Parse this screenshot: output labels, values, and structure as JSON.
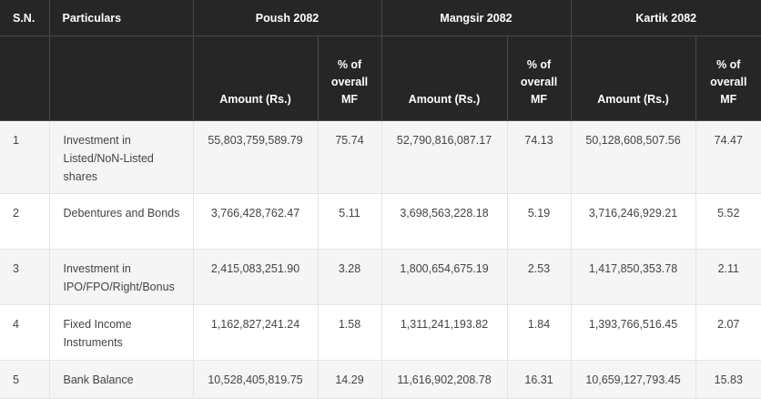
{
  "table": {
    "header_row1": {
      "sn": "S.N.",
      "particulars": "Particulars",
      "periods": [
        "Poush 2082",
        "Mangsir 2082",
        "Kartik 2082"
      ]
    },
    "header_row2": {
      "amount": "Amount (Rs.)",
      "percent": "% of overall MF"
    },
    "rows": [
      {
        "sn": "1",
        "particulars": "Investment in Listed/NoN-Listed shares",
        "poush_amount": "55,803,759,589.79",
        "poush_pct": "75.74",
        "mangsir_amount": "52,790,816,087.17",
        "mangsir_pct": "74.13",
        "kartik_amount": "50,128,608,507.56",
        "kartik_pct": "74.47"
      },
      {
        "sn": "2",
        "particulars": "Debentures and Bonds",
        "poush_amount": "3,766,428,762.47",
        "poush_pct": "5.11",
        "mangsir_amount": "3,698,563,228.18",
        "mangsir_pct": "5.19",
        "kartik_amount": "3,716,246,929.21",
        "kartik_pct": "5.52"
      },
      {
        "sn": "3",
        "particulars": "Investment in IPO/FPO/Right/Bonus",
        "poush_amount": "2,415,083,251.90",
        "poush_pct": "3.28",
        "mangsir_amount": "1,800,654,675.19",
        "mangsir_pct": "2.53",
        "kartik_amount": "1,417,850,353.78",
        "kartik_pct": "2.11"
      },
      {
        "sn": "4",
        "particulars": "Fixed Income Instruments",
        "poush_amount": "1,162,827,241.24",
        "poush_pct": "1.58",
        "mangsir_amount": "1,311,241,193.82",
        "mangsir_pct": "1.84",
        "kartik_amount": "1,393,766,516.45",
        "kartik_pct": "2.07"
      },
      {
        "sn": "5",
        "particulars": "Bank Balance",
        "poush_amount": "10,528,405,819.75",
        "poush_pct": "14.29",
        "mangsir_amount": "11,616,902,208.78",
        "mangsir_pct": "16.31",
        "kartik_amount": "10,659,127,793.45",
        "kartik_pct": "15.83"
      }
    ]
  },
  "colors": {
    "header_bg": "#262626",
    "header_text": "#ffffff",
    "body_text": "#444444",
    "stripe_bg": "#f5f5f5"
  }
}
